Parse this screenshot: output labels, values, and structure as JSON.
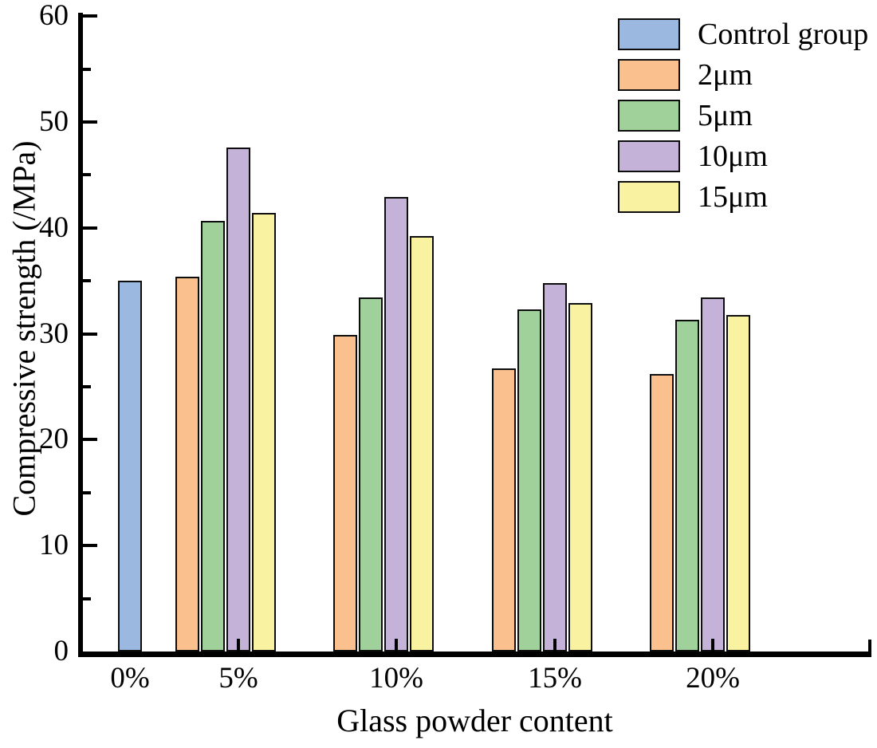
{
  "chart_data": {
    "type": "bar",
    "title": "",
    "xlabel": "Glass powder content",
    "ylabel": "Compressive strength (/MPa)",
    "ylim": [
      0,
      60
    ],
    "yticks_major": [
      0,
      10,
      20,
      30,
      40,
      50,
      60
    ],
    "yticks_minor": [
      5,
      15,
      25,
      35,
      45,
      55
    ],
    "grid": false,
    "legend_position": "top-right",
    "bar_outline_color": "#0d0d0d",
    "axis_color": "#000000",
    "background_color": "#ffffff",
    "categories": [
      "0%",
      "5%",
      "10%",
      "15%",
      "20%"
    ],
    "series": [
      {
        "name": "Control group",
        "color": "#9bb8e1",
        "values": [
          35.0,
          null,
          null,
          null,
          null
        ]
      },
      {
        "name": "2μm",
        "color": "#fac08d",
        "values": [
          null,
          35.4,
          29.9,
          26.7,
          26.2
        ]
      },
      {
        "name": "5μm",
        "color": "#a1d19a",
        "values": [
          null,
          40.7,
          33.4,
          32.3,
          31.3
        ]
      },
      {
        "name": "10μm",
        "color": "#c4b2d9",
        "values": [
          null,
          47.6,
          42.9,
          34.8,
          33.4
        ]
      },
      {
        "name": "15μm",
        "color": "#f8f2a1",
        "values": [
          null,
          41.4,
          39.2,
          32.9,
          31.8
        ]
      }
    ]
  }
}
